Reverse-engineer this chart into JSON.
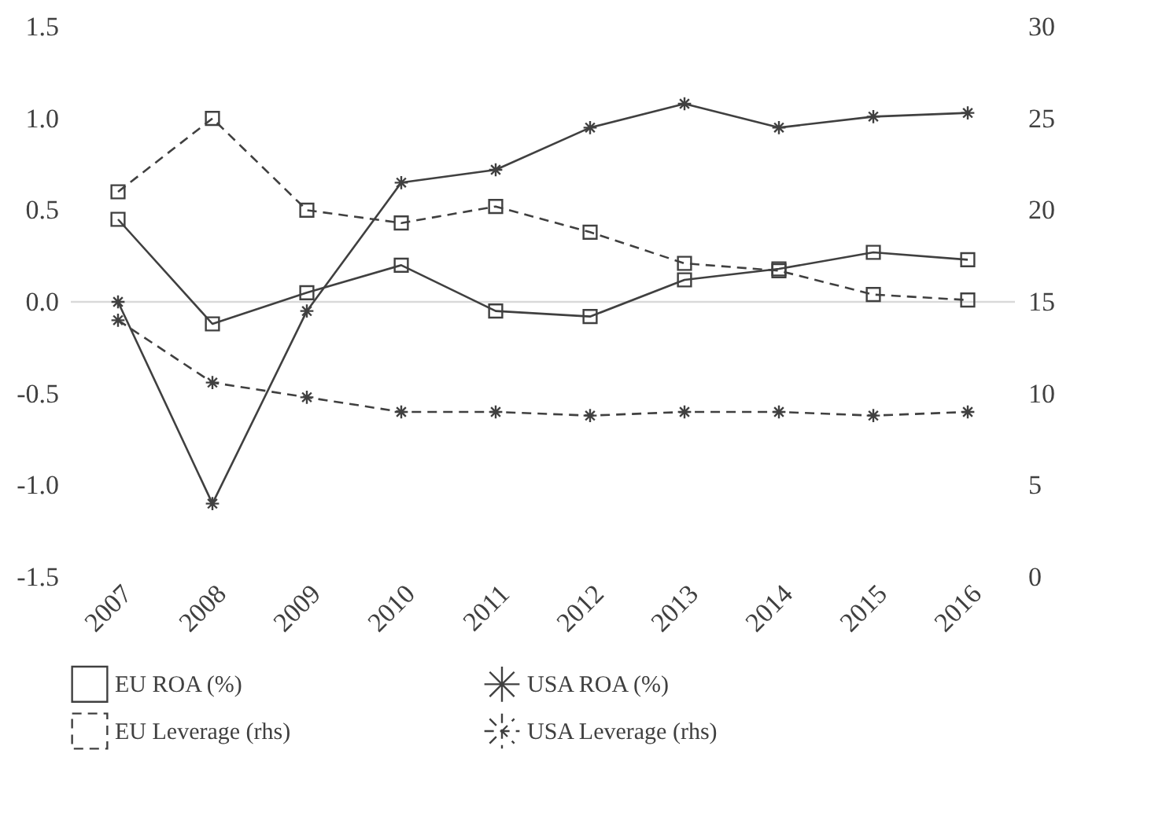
{
  "chart_data": {
    "type": "line",
    "categories": [
      "2007",
      "2008",
      "2009",
      "2010",
      "2011",
      "2012",
      "2013",
      "2014",
      "2015",
      "2016"
    ],
    "series": [
      {
        "name": "EU ROA (%)",
        "color": "#404040",
        "marker": "square",
        "line_style": "solid",
        "values": [
          0.45,
          -0.12,
          0.05,
          0.2,
          -0.05,
          -0.08,
          0.12,
          0.18,
          0.27,
          0.23
        ]
      },
      {
        "name": "USA ROA (%)",
        "color": "#404040",
        "marker": "cross",
        "line_style": "solid",
        "values": [
          0.0,
          -1.1,
          -0.05,
          0.65,
          0.72,
          0.95,
          1.08,
          0.95,
          1.01,
          1.03
        ]
      },
      {
        "name": "EU Leverage (rhs)",
        "color": "#404040",
        "marker": "square",
        "line_style": "dashed",
        "axis": "y2",
        "values": [
          21,
          25,
          20,
          19.3,
          20.2,
          18.8,
          17.1,
          16.7,
          15.4,
          15.1
        ]
      },
      {
        "name": "USA Leverage (rhs)",
        "color": "#404040",
        "marker": "cross",
        "line_style": "dashed",
        "axis": "y2",
        "values": [
          14,
          10.6,
          9.8,
          9,
          9,
          8.8,
          9,
          9,
          8.8,
          9
        ]
      }
    ],
    "ylim": [
      -1.5,
      1.5
    ],
    "yticks": [
      {
        "value": -1.5,
        "label": "-1.5"
      },
      {
        "value": -1,
        "label": "-1.0"
      },
      {
        "value": -0.5,
        "label": "-0.5"
      },
      {
        "value": 0,
        "label": "0.0"
      },
      {
        "value": 0.5,
        "label": "0.5"
      },
      {
        "value": 1,
        "label": "1.0"
      },
      {
        "value": 1.5,
        "label": "1.5"
      }
    ],
    "y2lim": [
      0,
      30
    ],
    "y2ticks": [
      0,
      5,
      10,
      15,
      20,
      25,
      30
    ],
    "ref_lines": [
      {
        "axis": "y",
        "value": 0,
        "color": "#d9d9d9"
      }
    ],
    "grid": false,
    "legend": "bottom"
  }
}
